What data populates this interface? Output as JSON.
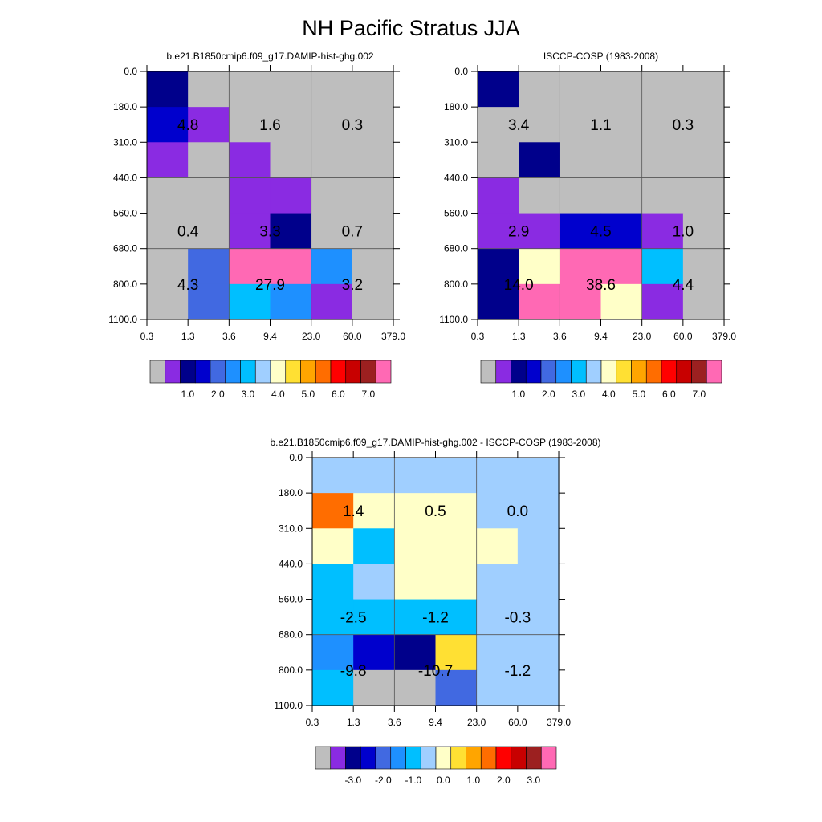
{
  "title": "NH Pacific Stratus JJA",
  "colors": {
    "palette": [
      "#bebebe",
      "#8a2be2",
      "#00008b",
      "#0000cd",
      "#4169e1",
      "#1e90ff",
      "#00bfff",
      "#a0cfff",
      "#ffffc8",
      "#ffe033",
      "#ffa500",
      "#ff6d00",
      "#ff0000",
      "#c80000",
      "#9c2020",
      "#ff69b4"
    ],
    "grid_line": "#555555",
    "text": "#000000"
  },
  "chart_data": [
    {
      "type": "heatmap",
      "title": "b.e21.B1850cmip6.f09_g17.DAMIP-hist-ghg.002",
      "x_ticks": [
        "0.3",
        "1.3",
        "3.6",
        "9.4",
        "23.0",
        "60.0",
        "379.0"
      ],
      "y_ticks": [
        "0.0",
        "180.0",
        "310.0",
        "440.0",
        "560.0",
        "680.0",
        "800.0",
        "1100.0"
      ],
      "cell_color_index": [
        [
          2,
          0,
          0,
          0,
          0,
          0
        ],
        [
          3,
          1,
          0,
          0,
          0,
          0
        ],
        [
          1,
          0,
          1,
          0,
          0,
          0
        ],
        [
          0,
          0,
          1,
          1,
          0,
          0
        ],
        [
          0,
          0,
          1,
          2,
          0,
          0
        ],
        [
          0,
          4,
          15,
          15,
          5,
          0
        ],
        [
          0,
          4,
          6,
          5,
          1,
          0
        ]
      ],
      "group_labels": [
        [
          "4.8",
          "1.6",
          "0.3"
        ],
        [
          "0.4",
          "3.3",
          "0.7"
        ],
        [
          "4.3",
          "27.9",
          "3.2"
        ]
      ],
      "colorbar": {
        "labels": [
          "1.0",
          "2.0",
          "3.0",
          "4.0",
          "5.0",
          "6.0",
          "7.0"
        ]
      }
    },
    {
      "type": "heatmap",
      "title": "ISCCP-COSP (1983-2008)",
      "x_ticks": [
        "0.3",
        "1.3",
        "3.6",
        "9.4",
        "23.0",
        "60.0",
        "379.0"
      ],
      "y_ticks": [
        "0.0",
        "180.0",
        "310.0",
        "440.0",
        "560.0",
        "680.0",
        "800.0",
        "1100.0"
      ],
      "cell_color_index": [
        [
          2,
          0,
          0,
          0,
          0,
          0
        ],
        [
          0,
          0,
          0,
          0,
          0,
          0
        ],
        [
          0,
          2,
          0,
          0,
          0,
          0
        ],
        [
          1,
          0,
          0,
          0,
          0,
          0
        ],
        [
          1,
          1,
          3,
          3,
          1,
          0
        ],
        [
          2,
          8,
          15,
          15,
          6,
          0
        ],
        [
          2,
          15,
          15,
          8,
          1,
          0
        ]
      ],
      "group_labels": [
        [
          "3.4",
          "1.1",
          "0.3"
        ],
        [
          "2.9",
          "4.5",
          "1.0"
        ],
        [
          "14.0",
          "38.6",
          "4.4"
        ]
      ],
      "colorbar": {
        "labels": [
          "1.0",
          "2.0",
          "3.0",
          "4.0",
          "5.0",
          "6.0",
          "7.0"
        ]
      }
    },
    {
      "type": "heatmap",
      "title": "b.e21.B1850cmip6.f09_g17.DAMIP-hist-ghg.002 - ISCCP-COSP (1983-2008)",
      "x_ticks": [
        "0.3",
        "1.3",
        "3.6",
        "9.4",
        "23.0",
        "60.0",
        "379.0"
      ],
      "y_ticks": [
        "0.0",
        "180.0",
        "310.0",
        "440.0",
        "560.0",
        "680.0",
        "800.0",
        "1100.0"
      ],
      "cell_color_index": [
        [
          7,
          7,
          7,
          7,
          7,
          7
        ],
        [
          11,
          8,
          8,
          8,
          7,
          7
        ],
        [
          8,
          6,
          8,
          8,
          8,
          7
        ],
        [
          6,
          7,
          8,
          8,
          7,
          7
        ],
        [
          6,
          6,
          6,
          6,
          7,
          7
        ],
        [
          5,
          3,
          2,
          9,
          7,
          7
        ],
        [
          6,
          0,
          0,
          4,
          7,
          7
        ]
      ],
      "group_labels": [
        [
          "1.4",
          "0.5",
          "0.0"
        ],
        [
          "-2.5",
          "-1.2",
          "-0.3"
        ],
        [
          "-9.8",
          "-10.7",
          "-1.2"
        ]
      ],
      "colorbar": {
        "labels": [
          "-3.0",
          "-2.0",
          "-1.0",
          "0.0",
          "1.0",
          "2.0",
          "3.0"
        ]
      }
    }
  ]
}
